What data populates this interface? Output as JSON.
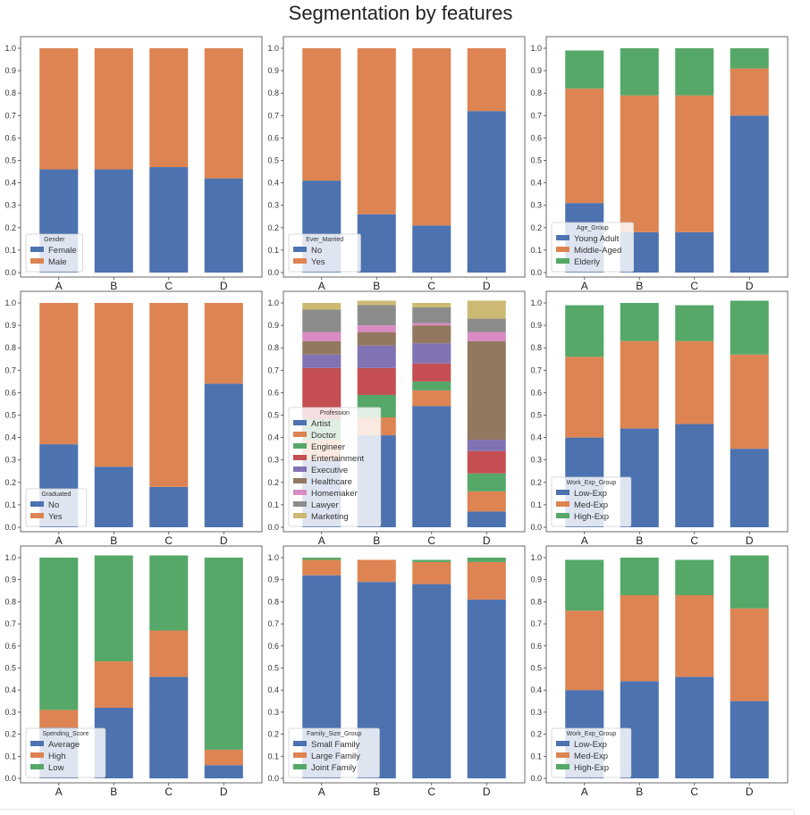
{
  "page": {
    "title": "Segmentation by features"
  },
  "colors": [
    "#4c72b0",
    "#dd8452",
    "#55a868",
    "#c44e52",
    "#8172b3",
    "#937860",
    "#da8bc3",
    "#8c8c8c",
    "#ccb974"
  ],
  "chart_data": [
    {
      "type": "bar",
      "stacked": true,
      "categories": [
        "A",
        "B",
        "C",
        "D"
      ],
      "ylim": [
        0,
        1.0
      ],
      "yticks": [
        "0.0",
        "0.1",
        "0.2",
        "0.3",
        "0.4",
        "0.5",
        "0.6",
        "0.7",
        "0.8",
        "0.9",
        "1.0"
      ],
      "legend_title": "Gender",
      "legend_position": "lower-left",
      "series": [
        {
          "name": "Female",
          "values": [
            0.46,
            0.46,
            0.47,
            0.42
          ]
        },
        {
          "name": "Male",
          "values": [
            0.54,
            0.54,
            0.53,
            0.58
          ]
        }
      ]
    },
    {
      "type": "bar",
      "stacked": true,
      "categories": [
        "A",
        "B",
        "C",
        "D"
      ],
      "ylim": [
        0,
        1.0
      ],
      "yticks": [
        "0.0",
        "0.1",
        "0.2",
        "0.3",
        "0.4",
        "0.5",
        "0.6",
        "0.7",
        "0.8",
        "0.9",
        "1.0"
      ],
      "legend_title": "Ever_Married",
      "legend_position": "lower-left",
      "series": [
        {
          "name": "No",
          "values": [
            0.41,
            0.26,
            0.21,
            0.72
          ]
        },
        {
          "name": "Yes",
          "values": [
            0.59,
            0.74,
            0.79,
            0.28
          ]
        }
      ]
    },
    {
      "type": "bar",
      "stacked": true,
      "categories": [
        "A",
        "B",
        "C",
        "D"
      ],
      "ylim": [
        0,
        1.0
      ],
      "yticks": [
        "0.0",
        "0.1",
        "0.2",
        "0.3",
        "0.4",
        "0.5",
        "0.6",
        "0.7",
        "0.8",
        "0.9",
        "1.0"
      ],
      "legend_title": "Age_Group",
      "legend_position": "lower-left",
      "series": [
        {
          "name": "Young Adult",
          "values": [
            0.31,
            0.18,
            0.18,
            0.7
          ]
        },
        {
          "name": "Middle-Aged",
          "values": [
            0.51,
            0.61,
            0.61,
            0.21
          ]
        },
        {
          "name": "Elderly",
          "values": [
            0.17,
            0.21,
            0.21,
            0.09
          ]
        }
      ]
    },
    {
      "type": "bar",
      "stacked": true,
      "categories": [
        "A",
        "B",
        "C",
        "D"
      ],
      "ylim": [
        0,
        1.0
      ],
      "yticks": [
        "0.0",
        "0.1",
        "0.2",
        "0.3",
        "0.4",
        "0.5",
        "0.6",
        "0.7",
        "0.8",
        "0.9",
        "1.0"
      ],
      "legend_title": "Graduated",
      "legend_position": "lower-left",
      "series": [
        {
          "name": "No",
          "values": [
            0.37,
            0.27,
            0.18,
            0.64
          ]
        },
        {
          "name": "Yes",
          "values": [
            0.63,
            0.73,
            0.82,
            0.36
          ]
        }
      ]
    },
    {
      "type": "bar",
      "stacked": true,
      "categories": [
        "A",
        "B",
        "C",
        "D"
      ],
      "ylim": [
        0,
        1.0
      ],
      "yticks": [
        "0.0",
        "0.1",
        "0.2",
        "0.3",
        "0.4",
        "0.5",
        "0.6",
        "0.7",
        "0.8",
        "0.9",
        "1.0"
      ],
      "legend_title": "Profession",
      "legend_position": "lower-left",
      "series": [
        {
          "name": "Artist",
          "values": [
            0.3,
            0.41,
            0.54,
            0.07
          ]
        },
        {
          "name": "Doctor",
          "values": [
            0.09,
            0.08,
            0.07,
            0.09
          ]
        },
        {
          "name": "Engineer",
          "values": [
            0.09,
            0.1,
            0.04,
            0.08
          ]
        },
        {
          "name": "Entertainment",
          "values": [
            0.23,
            0.12,
            0.08,
            0.1
          ]
        },
        {
          "name": "Executive",
          "values": [
            0.06,
            0.1,
            0.09,
            0.05
          ]
        },
        {
          "name": "Healthcare",
          "values": [
            0.06,
            0.06,
            0.08,
            0.44
          ]
        },
        {
          "name": "Homemaker",
          "values": [
            0.04,
            0.03,
            0.01,
            0.04
          ]
        },
        {
          "name": "Lawyer",
          "values": [
            0.1,
            0.09,
            0.07,
            0.06
          ]
        },
        {
          "name": "Marketing",
          "values": [
            0.03,
            0.02,
            0.02,
            0.08
          ]
        }
      ]
    },
    {
      "type": "bar",
      "stacked": true,
      "categories": [
        "A",
        "B",
        "C",
        "D"
      ],
      "ylim": [
        0,
        1.0
      ],
      "yticks": [
        "0.0",
        "0.1",
        "0.2",
        "0.3",
        "0.4",
        "0.5",
        "0.6",
        "0.7",
        "0.8",
        "0.9",
        "1.0"
      ],
      "legend_title": "Work_Exp_Group",
      "legend_position": "lower-left",
      "series": [
        {
          "name": "Low-Exp",
          "values": [
            0.4,
            0.44,
            0.46,
            0.35
          ]
        },
        {
          "name": "Med-Exp",
          "values": [
            0.36,
            0.39,
            0.37,
            0.42
          ]
        },
        {
          "name": "High-Exp",
          "values": [
            0.23,
            0.17,
            0.16,
            0.24
          ]
        }
      ]
    },
    {
      "type": "bar",
      "stacked": true,
      "categories": [
        "A",
        "B",
        "C",
        "D"
      ],
      "ylim": [
        0,
        1.0
      ],
      "yticks": [
        "0.0",
        "0.1",
        "0.2",
        "0.3",
        "0.4",
        "0.5",
        "0.6",
        "0.7",
        "0.8",
        "0.9",
        "1.0"
      ],
      "legend_title": "Spending_Score",
      "legend_position": "lower-left",
      "series": [
        {
          "name": "Average",
          "values": [
            0.23,
            0.32,
            0.46,
            0.06
          ]
        },
        {
          "name": "High",
          "values": [
            0.08,
            0.21,
            0.21,
            0.07
          ]
        },
        {
          "name": "Low",
          "values": [
            0.69,
            0.48,
            0.34,
            0.87
          ]
        }
      ]
    },
    {
      "type": "bar",
      "stacked": true,
      "categories": [
        "A",
        "B",
        "C",
        "D"
      ],
      "ylim": [
        0,
        1.0
      ],
      "yticks": [
        "0.0",
        "0.1",
        "0.2",
        "0.3",
        "0.4",
        "0.5",
        "0.6",
        "0.7",
        "0.8",
        "0.9",
        "1.0"
      ],
      "legend_title": "Family_Size_Group",
      "legend_position": "lower-left",
      "series": [
        {
          "name": "Small Family",
          "values": [
            0.92,
            0.89,
            0.88,
            0.81
          ]
        },
        {
          "name": "Large Family",
          "values": [
            0.07,
            0.1,
            0.1,
            0.17
          ]
        },
        {
          "name": "Joint Family",
          "values": [
            0.01,
            0.0,
            0.01,
            0.02
          ]
        }
      ]
    },
    {
      "type": "bar",
      "stacked": true,
      "categories": [
        "A",
        "B",
        "C",
        "D"
      ],
      "ylim": [
        0,
        1.0
      ],
      "yticks": [
        "0.0",
        "0.1",
        "0.2",
        "0.3",
        "0.4",
        "0.5",
        "0.6",
        "0.7",
        "0.8",
        "0.9",
        "1.0"
      ],
      "legend_title": "Work_Exp_Group",
      "legend_position": "lower-left",
      "series": [
        {
          "name": "Low-Exp",
          "values": [
            0.4,
            0.44,
            0.46,
            0.35
          ]
        },
        {
          "name": "Med-Exp",
          "values": [
            0.36,
            0.39,
            0.37,
            0.42
          ]
        },
        {
          "name": "High-Exp",
          "values": [
            0.23,
            0.17,
            0.16,
            0.24
          ]
        }
      ]
    }
  ]
}
